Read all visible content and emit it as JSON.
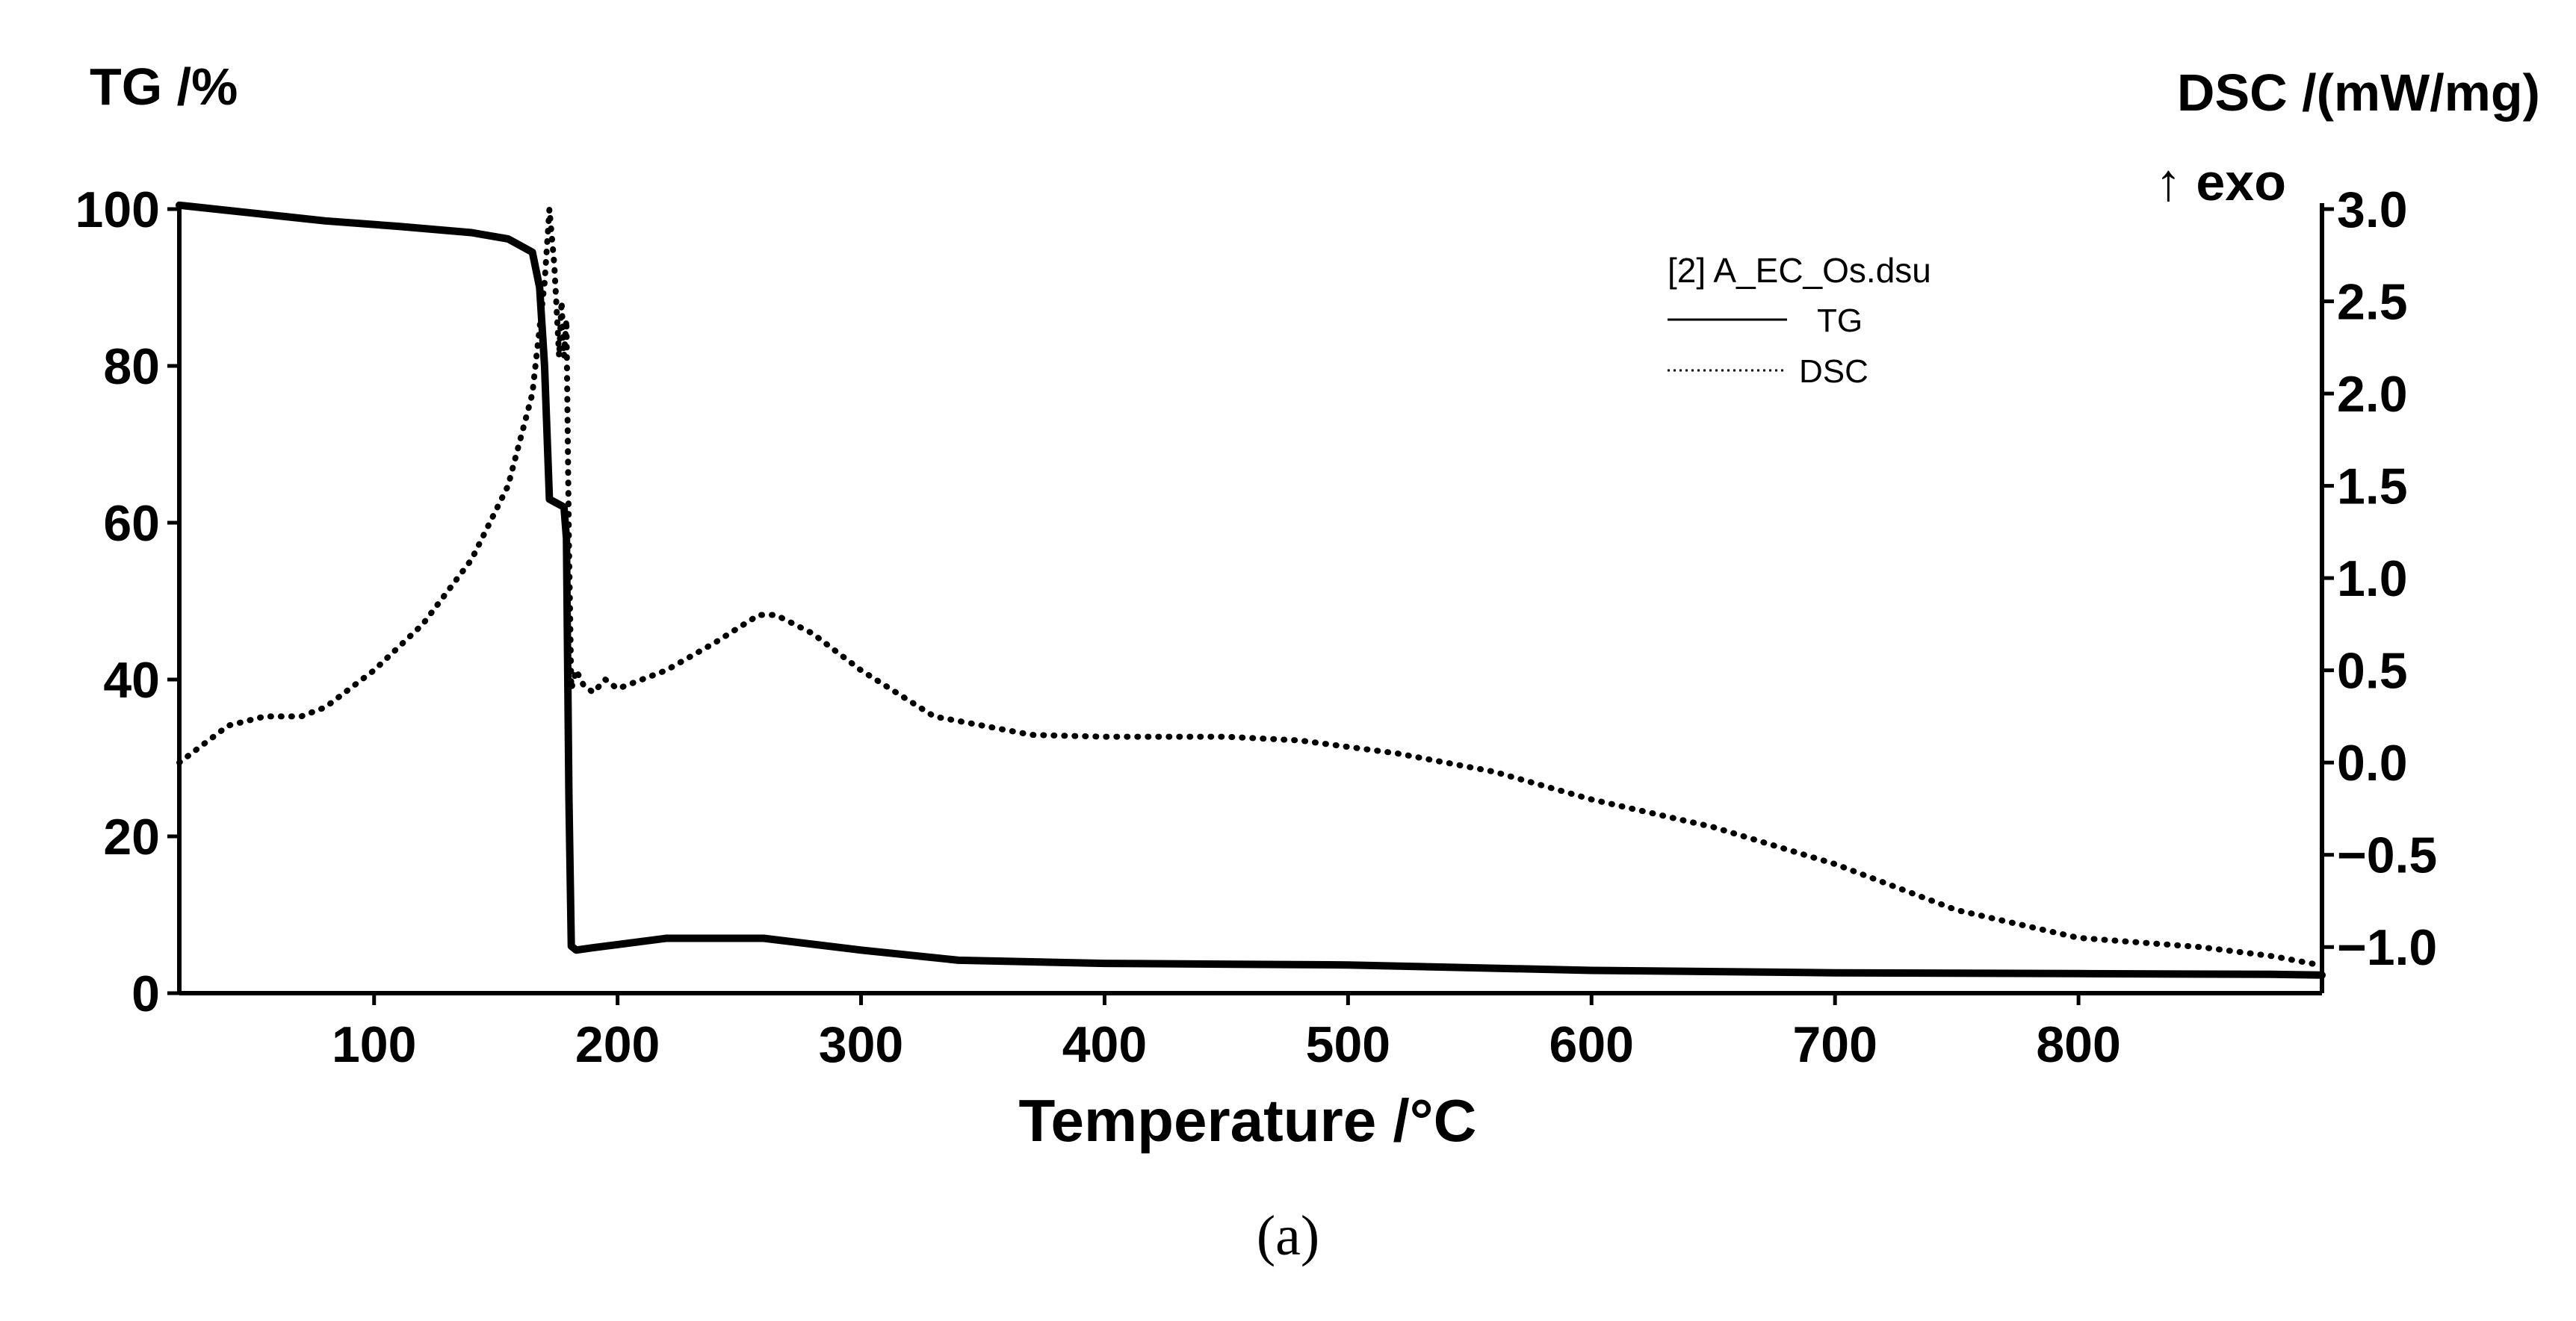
{
  "chart_data": {
    "type": "line",
    "title": "",
    "caption": "(a)",
    "caption_letter": "a",
    "xlabel": "Temperature /°C",
    "ylabel_left": "TG /%",
    "ylabel_right": "DSC /(mW/mg)",
    "exo_label": "↑ exo",
    "xlim": [
      20,
      900
    ],
    "ylim_left": [
      0,
      100
    ],
    "ylim_right": [
      -1.25,
      3.0
    ],
    "x_ticks": [
      100,
      200,
      300,
      400,
      500,
      600,
      700,
      800
    ],
    "x_tick_labels": [
      "100",
      "200",
      "300",
      "400",
      "500",
      "600",
      "700",
      "800"
    ],
    "y_left_ticks": [
      0,
      20,
      40,
      60,
      80,
      100
    ],
    "y_left_tick_labels": [
      "0",
      "20",
      "40",
      "60",
      "80",
      "100"
    ],
    "y_right_ticks": [
      -1.0,
      -0.5,
      0.0,
      0.5,
      1.0,
      1.5,
      2.0,
      2.5,
      3.0
    ],
    "y_right_tick_labels": [
      "−1.0",
      "−0.5",
      "0.0",
      "0.5",
      "1.0",
      "1.5",
      "2.0",
      "2.5",
      "3.0"
    ],
    "grid": false,
    "legend": {
      "position": "top-right",
      "title": "[2] A_EC_Os.dsu",
      "entries": [
        "TG",
        "DSC"
      ]
    },
    "series": [
      {
        "name": "TG",
        "axis": "left",
        "style": "solid",
        "color": "#000000",
        "x": [
          20,
          50,
          80,
          110,
          140,
          155,
          165,
          168,
          170,
          172,
          175,
          178,
          179,
          180,
          181,
          183,
          190,
          200,
          220,
          260,
          300,
          340,
          400,
          500,
          600,
          700,
          800,
          880,
          900
        ],
        "y": [
          100.5,
          99.5,
          98.5,
          97.8,
          97.0,
          96.2,
          94.5,
          90,
          80,
          63,
          62.5,
          62,
          58,
          25,
          6,
          5.5,
          5.8,
          6.2,
          7.0,
          7.0,
          5.5,
          4.2,
          3.8,
          3.6,
          2.9,
          2.6,
          2.5,
          2.4,
          2.3
        ]
      },
      {
        "name": "DSC",
        "axis": "right",
        "style": "dotted",
        "color": "#000000",
        "x": [
          20,
          40,
          55,
          70,
          80,
          100,
          120,
          140,
          155,
          165,
          170,
          172,
          174,
          176,
          177,
          178,
          179,
          180,
          181,
          183,
          186,
          190,
          195,
          200,
          220,
          240,
          258,
          265,
          280,
          300,
          330,
          370,
          400,
          450,
          480,
          520,
          560,
          600,
          650,
          700,
          750,
          800,
          850,
          880,
          900
        ],
        "y": [
          0.0,
          0.2,
          0.25,
          0.25,
          0.3,
          0.5,
          0.75,
          1.1,
          1.5,
          2.0,
          2.6,
          3.0,
          2.7,
          2.2,
          2.5,
          2.2,
          2.4,
          1.2,
          0.4,
          0.5,
          0.42,
          0.38,
          0.45,
          0.4,
          0.5,
          0.65,
          0.8,
          0.8,
          0.7,
          0.5,
          0.25,
          0.15,
          0.14,
          0.14,
          0.12,
          0.05,
          -0.05,
          -0.2,
          -0.35,
          -0.55,
          -0.8,
          -0.95,
          -1.0,
          -1.05,
          -1.1
        ]
      }
    ]
  }
}
